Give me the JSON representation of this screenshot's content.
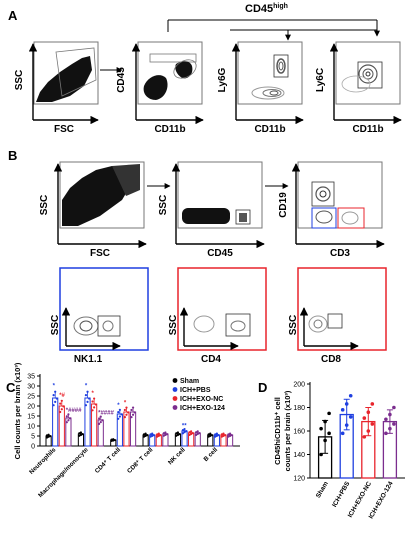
{
  "panels": {
    "A": {
      "letter": "A",
      "gate_label": "CD45high",
      "plots": [
        {
          "x": "FSC",
          "y": "SSC"
        },
        {
          "x": "CD11b",
          "y": "CD45"
        },
        {
          "x": "CD11b",
          "y": "Ly6G"
        },
        {
          "x": "CD11b",
          "y": "Ly6C"
        }
      ]
    },
    "B": {
      "letter": "B",
      "plots": [
        {
          "x": "FSC",
          "y": "SSC"
        },
        {
          "x": "CD45",
          "y": "SSC"
        },
        {
          "x": "CD3",
          "y": "CD19"
        },
        {
          "x": "NK1.1",
          "y": "SSC"
        },
        {
          "x": "CD4",
          "y": "SSC"
        },
        {
          "x": "CD8",
          "y": "SSC"
        }
      ]
    },
    "C": {
      "letter": "C"
    },
    "D": {
      "letter": "D"
    }
  },
  "colors": {
    "sham": "#000000",
    "ich_pbs": "#1f3fe0",
    "ich_exo_nc": "#e8242c",
    "ich_exo_124": "#7b2d8e",
    "gate_blue": "#1f3fe0",
    "gate_red": "#e8242c"
  },
  "chart_data": [
    {
      "type": "bar",
      "panel": "C",
      "ylabel": "Cell counts per brain (x10³)",
      "ylim": [
        0,
        35
      ],
      "yticks": [
        0,
        5,
        10,
        15,
        20,
        25,
        30,
        35
      ],
      "categories": [
        "Neutrophils",
        "Macrophage/monocyte",
        "CD4⁺ T cell",
        "CD8⁺ T cell",
        "NK cell",
        "B cell"
      ],
      "series": [
        {
          "name": "Sham",
          "values": [
            5,
            6,
            3,
            5.5,
            6,
            5.5
          ]
        },
        {
          "name": "ICH+PBS",
          "values": [
            24,
            24,
            16,
            5.5,
            7.5,
            5.5
          ]
        },
        {
          "name": "ICH+EXO-NC",
          "values": [
            20,
            21,
            17,
            5.5,
            6.5,
            5.5
          ]
        },
        {
          "name": "ICH+EXO-124",
          "values": [
            14,
            13,
            17,
            6,
            6.5,
            5.5
          ]
        }
      ],
      "annotations": [
        {
          "category": "Neutrophils",
          "series": "ICH+PBS",
          "text": "*"
        },
        {
          "category": "Neutrophils",
          "series": "ICH+EXO-NC",
          "text": "*#"
        },
        {
          "category": "Neutrophils",
          "series": "ICH+EXO-124",
          "text": "*####"
        },
        {
          "category": "Macrophage/monocyte",
          "series": "ICH+PBS",
          "text": "*"
        },
        {
          "category": "Macrophage/monocyte",
          "series": "ICH+EXO-NC",
          "text": "*"
        },
        {
          "category": "Macrophage/monocyte",
          "series": "ICH+EXO-124",
          "text": "*####"
        },
        {
          "category": "CD4⁺ T cell",
          "series": "ICH+PBS",
          "text": "*"
        },
        {
          "category": "CD4⁺ T cell",
          "series": "ICH+EXO-NC",
          "text": "*"
        },
        {
          "category": "NK cell",
          "series": "ICH+PBS",
          "text": "**"
        }
      ],
      "legend": [
        "Sham",
        "ICH+PBS",
        "ICH+EXO-NC",
        "ICH+EXO-124"
      ],
      "legend_position": "top-right"
    },
    {
      "type": "bar",
      "panel": "D",
      "ylabel_line1": "CD45hiCD11b⁺ cell",
      "ylabel_line2": "counts per brain (x10³)",
      "ylim": [
        120,
        200
      ],
      "yticks": [
        120,
        140,
        160,
        180,
        200
      ],
      "categories": [
        "Sham",
        "ICH+PBS",
        "ICH+EXO-NC",
        "ICH+EXO-124"
      ],
      "values": [
        155,
        174,
        168,
        168
      ],
      "errors": [
        14,
        13,
        12,
        10
      ],
      "points": [
        [
          140,
          152,
          158,
          162,
          168,
          175
        ],
        [
          158,
          165,
          172,
          178,
          183,
          190
        ],
        [
          155,
          160,
          166,
          171,
          176,
          183
        ],
        [
          158,
          162,
          166,
          170,
          174,
          180
        ]
      ]
    }
  ]
}
